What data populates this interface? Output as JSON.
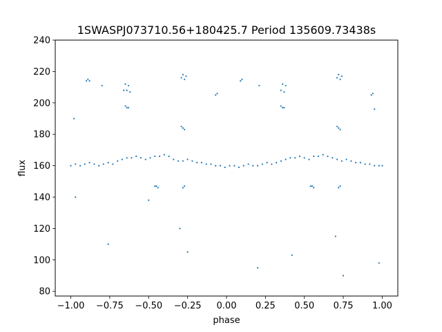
{
  "chart_data": {
    "type": "scatter",
    "title": "1SWASPJ073710.56+180425.7 Period 135609.73438s",
    "xlabel": "phase",
    "ylabel": "flux",
    "xlim": [
      -1.1,
      1.1
    ],
    "ylim": [
      77,
      240
    ],
    "xticks": [
      -1.0,
      -0.75,
      -0.5,
      -0.25,
      0.0,
      0.25,
      0.5,
      0.75,
      1.0
    ],
    "xtick_labels": [
      "−1.00",
      "−0.75",
      "−0.50",
      "−0.25",
      "0.00",
      "0.25",
      "0.50",
      "0.75",
      "1.00"
    ],
    "yticks": [
      80,
      100,
      120,
      140,
      160,
      180,
      200,
      220,
      240
    ],
    "ytick_labels": [
      "80",
      "100",
      "120",
      "140",
      "160",
      "180",
      "200",
      "220",
      "240"
    ],
    "grid": false,
    "marker_color": "#1f77b4",
    "series": [
      {
        "x": [
          -1.0,
          -0.97,
          -0.94,
          -0.91,
          -0.88,
          -0.85,
          -0.82,
          -0.79,
          -0.76,
          -0.73,
          -0.7,
          -0.67,
          -0.64,
          -0.61,
          -0.58,
          -0.55,
          -0.52,
          -0.49,
          -0.46,
          -0.43,
          -0.4,
          -0.37,
          -0.34,
          -0.31,
          -0.28,
          -0.25,
          -0.22,
          -0.19,
          -0.16,
          -0.13,
          -0.1,
          -0.07,
          -0.04,
          -0.01,
          0.02,
          0.05,
          0.08,
          0.11,
          0.14,
          0.17,
          0.2,
          0.23,
          0.26,
          0.29,
          0.32,
          0.35,
          0.38,
          0.41,
          0.44,
          0.47,
          0.5,
          0.53,
          0.56,
          0.59,
          0.62,
          0.65,
          0.68,
          0.71,
          0.74,
          0.77,
          0.8,
          0.83,
          0.86,
          0.89,
          0.92,
          0.95,
          0.98,
          1.0,
          -0.9,
          -0.89,
          -0.88,
          -0.8,
          -0.66,
          -0.65,
          -0.64,
          -0.63,
          -0.62,
          -0.65,
          -0.64,
          -0.63,
          -0.46,
          -0.45,
          -0.44,
          -0.29,
          -0.28,
          -0.27,
          -0.26,
          -0.29,
          -0.28,
          -0.27,
          -0.28,
          -0.27,
          -0.07,
          -0.06,
          0.09,
          0.1,
          0.21,
          0.35,
          0.36,
          0.37,
          0.38,
          0.35,
          0.36,
          0.37,
          0.54,
          0.55,
          0.56,
          0.71,
          0.72,
          0.73,
          0.74,
          0.71,
          0.72,
          0.73,
          0.72,
          0.73,
          0.93,
          0.94,
          0.95,
          -0.98,
          -0.97,
          -0.76,
          -0.5,
          -0.3,
          -0.25,
          0.2,
          0.42,
          0.7,
          0.75,
          0.98
        ],
        "y": [
          160,
          161,
          160,
          161,
          162,
          161,
          160,
          161,
          162,
          161,
          163,
          164,
          165,
          165,
          166,
          165,
          164,
          165,
          166,
          166,
          167,
          166,
          164,
          163,
          163,
          164,
          163,
          162,
          162,
          161,
          161,
          160,
          160,
          159,
          160,
          160,
          159,
          160,
          161,
          160,
          160,
          161,
          162,
          161,
          162,
          163,
          164,
          165,
          165,
          166,
          165,
          164,
          166,
          166,
          167,
          166,
          165,
          164,
          163,
          164,
          163,
          162,
          162,
          161,
          161,
          160,
          160,
          160,
          214,
          215,
          214,
          211,
          208,
          212,
          208,
          211,
          207,
          198,
          197,
          197,
          147,
          147,
          146,
          216,
          218,
          215,
          217,
          185,
          184,
          183,
          146,
          147,
          205,
          206,
          214,
          215,
          211,
          208,
          212,
          207,
          211,
          198,
          197,
          197,
          147,
          147,
          146,
          216,
          218,
          215,
          217,
          185,
          184,
          183,
          146,
          147,
          205,
          206,
          196,
          190,
          140,
          110,
          138,
          120,
          105,
          95,
          103,
          115,
          90,
          98
        ]
      }
    ]
  }
}
